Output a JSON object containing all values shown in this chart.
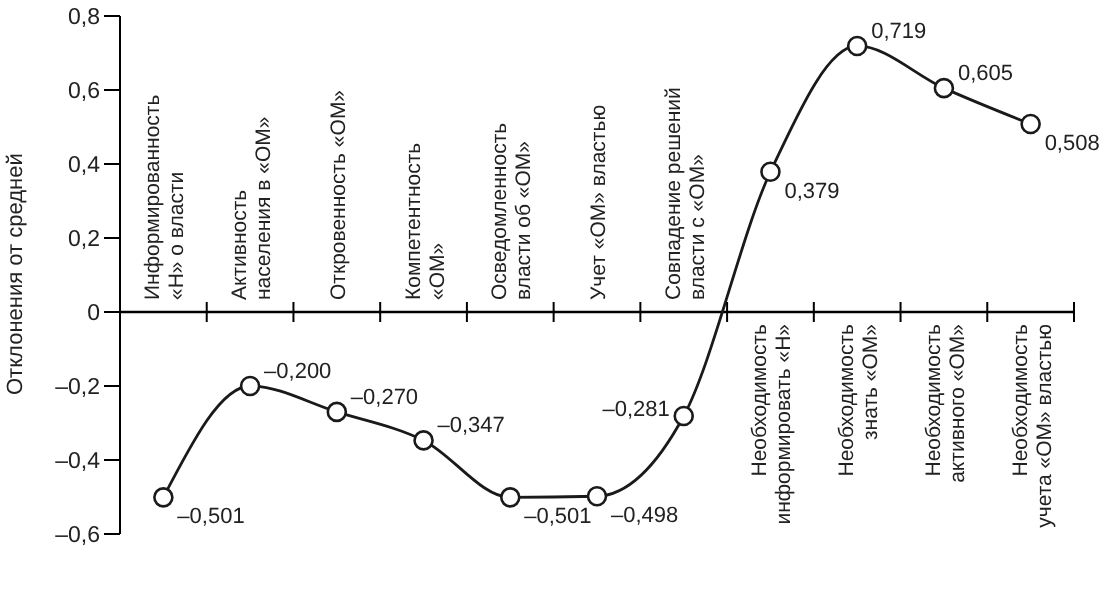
{
  "chart_data": {
    "type": "line",
    "ylabel": "Отклонения от средней",
    "categories": [
      "Информированность «Н» о власти",
      "Активность населения в «ОМ»",
      "Откровенность «ОМ»",
      "Компетентность «ОМ»",
      "Осведомленность власти об «ОМ»",
      "Учет «ОМ» властью",
      "Совпадение решений власти с «ОМ»",
      "Необходимость информировать «Н»",
      "Необходимость знать «ОМ»",
      "Необходимость активного «ОМ»",
      "Необходимость учета «ОМ» властью"
    ],
    "series": [
      {
        "color": "#1a1a1a",
        "values": [
          -0.501,
          -0.2,
          -0.27,
          -0.347,
          -0.501,
          -0.498,
          -0.281,
          0.379,
          0.719,
          0.605,
          0.508
        ],
        "value_labels": [
          "–0,501",
          "–0,200",
          "–0,270",
          "–0,347",
          "–0,501",
          "–0,498",
          "–0,281",
          "0,379",
          "0,719",
          "0,605",
          "0,508"
        ]
      }
    ],
    "ylim": [
      -0.6,
      0.8
    ],
    "yticks": [
      {
        "value": -0.6,
        "label": "–0,6"
      },
      {
        "value": -0.4,
        "label": "–0,4"
      },
      {
        "value": -0.2,
        "label": "–0,2"
      },
      0,
      {
        "value": 0.2,
        "label": "0,2"
      },
      {
        "value": 0.4,
        "label": "0,4"
      },
      {
        "value": 0.6,
        "label": "0,6"
      },
      {
        "value": 0.8,
        "label": "0,8"
      }
    ],
    "marker": "circle",
    "line_style": "solid",
    "grid": false,
    "legend": false
  }
}
